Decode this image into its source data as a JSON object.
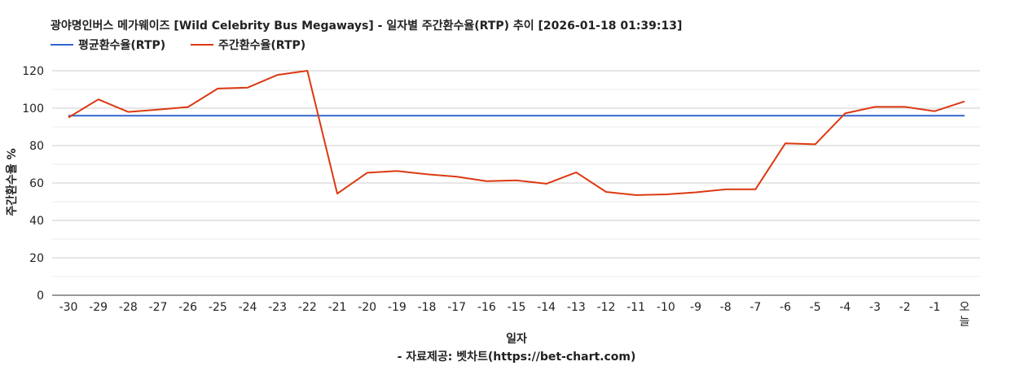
{
  "chart_data": {
    "type": "line",
    "title": "광야명인버스 메가웨이즈 [Wild Celebrity Bus Megaways] - 일자별 주간환수율(RTP) 추이 [2026-01-18 01:39:13]",
    "xlabel": "일자",
    "ylabel": "주간환수율 %",
    "source": "- 자료제공: 벳차트(https://bet-chart.com)",
    "ylim": [
      0,
      120
    ],
    "yticks": [
      "0",
      "20",
      "40",
      "60",
      "80",
      "100",
      "120"
    ],
    "categories": [
      "-30",
      "-29",
      "-28",
      "-27",
      "-26",
      "-25",
      "-24",
      "-23",
      "-22",
      "-21",
      "-20",
      "-19",
      "-18",
      "-17",
      "-16",
      "-15",
      "-14",
      "-13",
      "-12",
      "-11",
      "-10",
      "-9",
      "-8",
      "-7",
      "-6",
      "-5",
      "-4",
      "-3",
      "-2",
      "-1",
      "오늘"
    ],
    "grid": true,
    "legend_position": "top-left",
    "series": [
      {
        "name": "평균환수율(RTP)",
        "color": "#3366cc",
        "values": [
          96,
          96,
          96,
          96,
          96,
          96,
          96,
          96,
          96,
          96,
          96,
          96,
          96,
          96,
          96,
          96,
          96,
          96,
          96,
          96,
          96,
          96,
          96,
          96,
          96,
          96,
          96,
          96,
          96,
          96,
          96
        ]
      },
      {
        "name": "주간환수율(RTP)",
        "color": "#dc3912",
        "values": [
          95,
          104.7,
          98,
          99.2,
          100.6,
          110.5,
          111,
          117.8,
          120,
          54.3,
          65.5,
          66.4,
          64.7,
          63.4,
          61,
          61.4,
          59.6,
          65.7,
          55.2,
          53.5,
          53.9,
          55,
          56.6,
          56.6,
          81.2,
          80.7,
          97.2,
          100.7,
          100.7,
          98.4,
          103.6
        ]
      }
    ]
  }
}
